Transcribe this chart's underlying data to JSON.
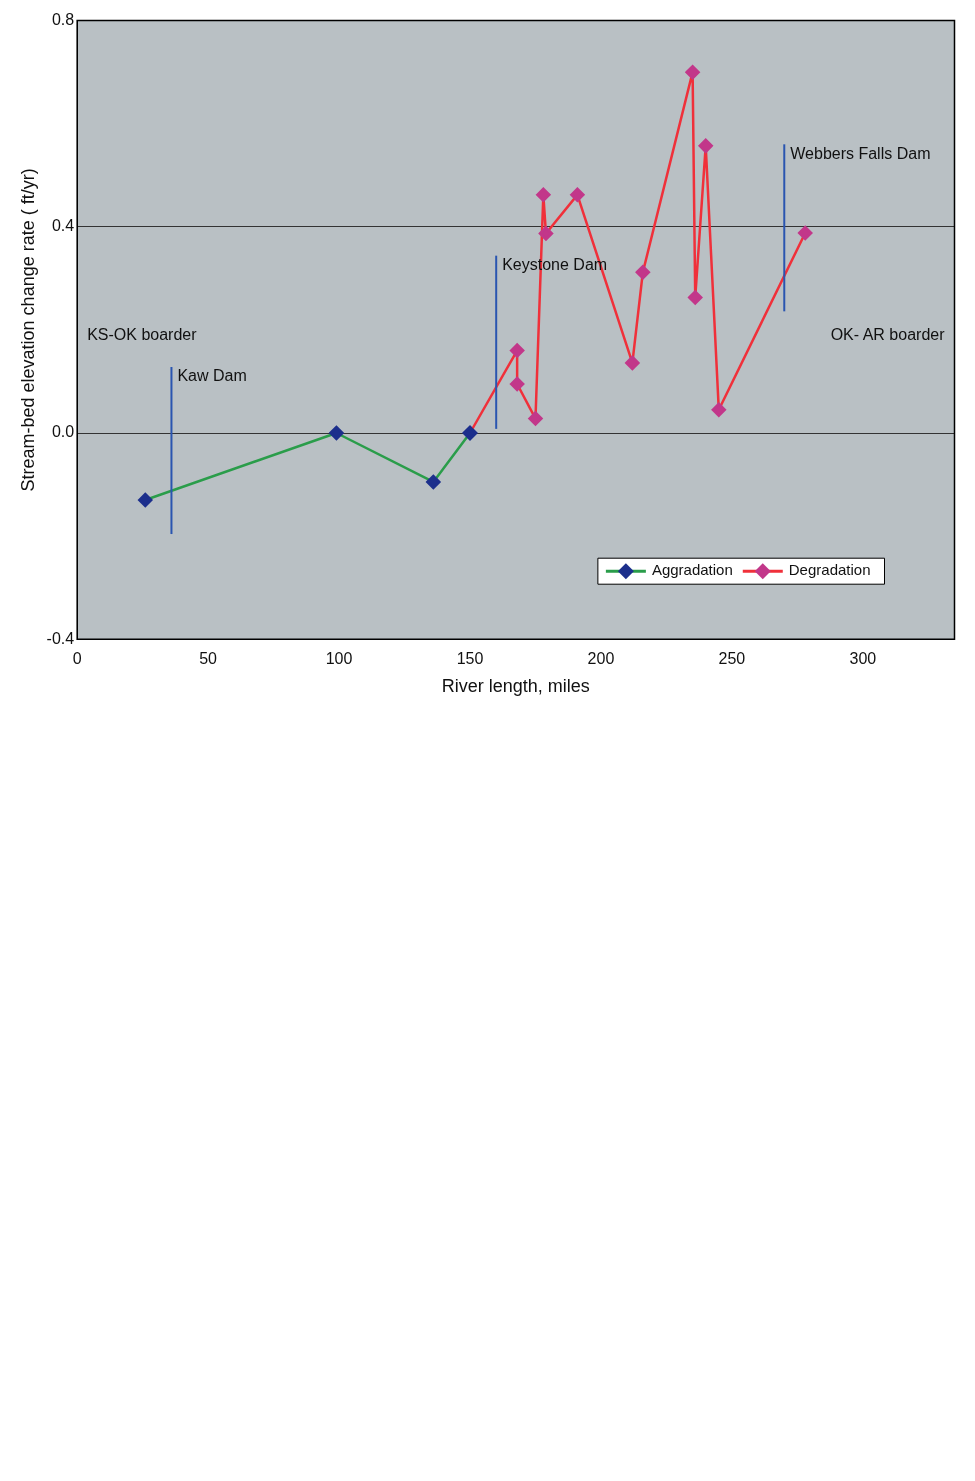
{
  "chart_data": {
    "type": "line",
    "xlabel": "River length, miles",
    "ylabel": "Stream-bed elevation change rate ( ft/yr)",
    "xlim": [
      0,
      335
    ],
    "xticks": [
      0,
      50,
      100,
      150,
      200,
      250,
      300
    ],
    "ylim": [
      -0.4,
      0.8
    ],
    "yticks": [
      {
        "value": -0.4,
        "label": "-0.4"
      },
      {
        "value": 0,
        "label": "0.0"
      },
      {
        "value": 0.4,
        "label": "0.4"
      },
      {
        "value": 0.8,
        "label": "0.8"
      }
    ],
    "grid": "y",
    "legend": "bottom right",
    "marker": "diamond",
    "line_style": "solid",
    "series": [
      {
        "name": "Aggradation",
        "color": "#2a9d4a",
        "colors": [
          "#1c2f8c",
          "#1c2f8c",
          "#1c2f8c",
          "#1c2f8c"
        ],
        "x": [
          26,
          99,
          136,
          150
        ],
        "values": [
          -0.13,
          0.0,
          -0.095,
          0.0
        ]
      },
      {
        "name": "Degradation",
        "color": "#f0303a",
        "colors": [
          "#1c2f8c",
          "#c2378a",
          "#c2378a",
          "#c2378a",
          "#c2378a",
          "#c2378a",
          "#c2378a",
          "#c2378a",
          "#c2378a",
          "#c2378a",
          "#c2378a",
          "#c2378a",
          "#c2378a",
          "#c2378a"
        ],
        "x": [
          150,
          168,
          168,
          175,
          178,
          179,
          191,
          212,
          216,
          235,
          236,
          240,
          245,
          278
        ],
        "values": [
          0.0,
          0.16,
          0.095,
          0.028,
          0.462,
          0.387,
          0.462,
          0.136,
          0.312,
          0.7,
          0.263,
          0.557,
          0.045,
          0.388
        ]
      }
    ],
    "ref_lines": [
      {
        "axis": "x",
        "value": 36,
        "label": "Kaw Dam",
        "color": "#2a55b0"
      },
      {
        "axis": "x",
        "value": 160,
        "label": "Keystone Dam",
        "color": "#2a55b0"
      },
      {
        "axis": "x",
        "value": 270,
        "label": "Webbers Falls Dam",
        "color": "#2a55b0"
      }
    ],
    "annotations": [
      "KS-OK boarder",
      "OK- AR boarder"
    ]
  }
}
